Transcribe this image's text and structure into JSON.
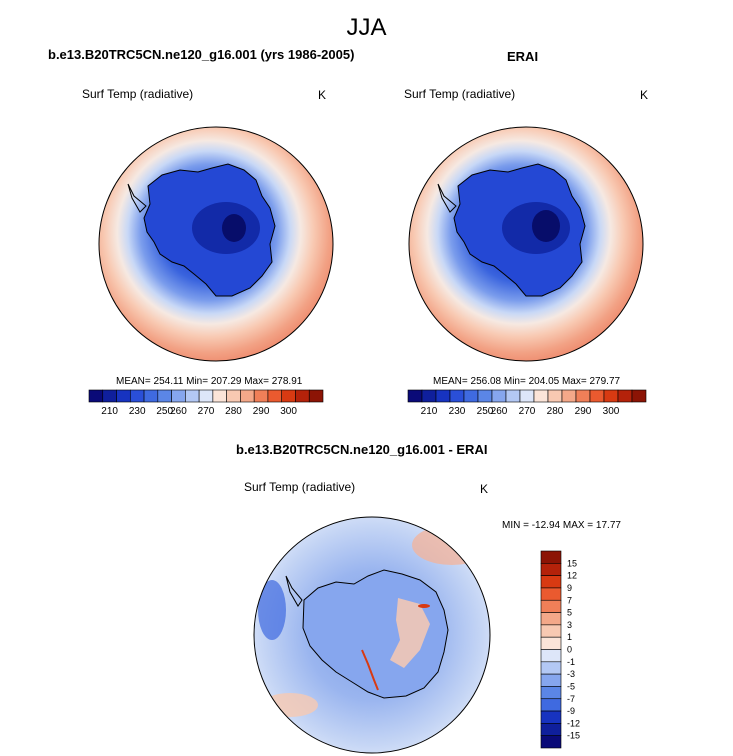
{
  "figure": {
    "title": "JJA"
  },
  "panels": [
    {
      "title": "b.e13.B20TRC5CN.ne120_g16.001 (yrs 1986-2005)",
      "variable": "Surf Temp (radiative)",
      "units": "K",
      "stats": "MEAN= 254.11  Min= 207.29  Max= 278.91"
    },
    {
      "title": "ERAI",
      "variable": "Surf Temp (radiative)",
      "units": "K",
      "stats": "MEAN= 256.08  Min= 204.05  Max= 279.77"
    },
    {
      "title": "b.e13.B20TRC5CN.ne120_g16.001 - ERAI",
      "variable": "Surf Temp (radiative)",
      "units": "K",
      "stats": "MIN = -12.94 MAX =  17.77"
    }
  ],
  "colorbars": {
    "absolute": {
      "labels": [
        "210",
        "230",
        "250",
        "260",
        "270",
        "280",
        "290",
        "300"
      ],
      "colors": [
        "#0a0a78",
        "#0f1f9c",
        "#1733c0",
        "#2a4fd8",
        "#3f6ae0",
        "#5b86e6",
        "#86a6ee",
        "#b3c8f4",
        "#dde6f9",
        "#fbe4d8",
        "#f8c9b2",
        "#f4a889",
        "#f07f58",
        "#ea5a2f",
        "#d83a12",
        "#b4220a",
        "#8c1405"
      ]
    },
    "difference": {
      "labels": [
        "15",
        "12",
        "9",
        "7",
        "5",
        "3",
        "1",
        "0",
        "-1",
        "-3",
        "-5",
        "-7",
        "-9",
        "-12",
        "-15"
      ],
      "colors": [
        "#8c1405",
        "#b4220a",
        "#d83a12",
        "#ea5a2f",
        "#f07f58",
        "#f4a889",
        "#f8c9b2",
        "#fbe4d8",
        "#dde6f9",
        "#b3c8f4",
        "#86a6ee",
        "#5b86e6",
        "#3f6ae0",
        "#1733c0",
        "#0f1f9c",
        "#0a0a78"
      ]
    }
  }
}
